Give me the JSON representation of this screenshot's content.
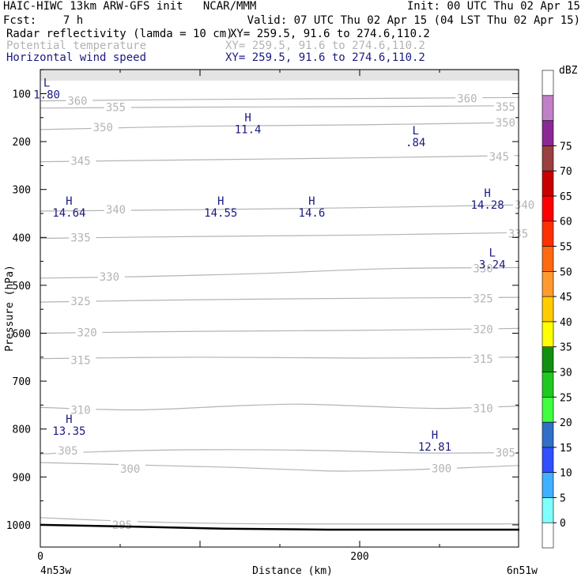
{
  "header": {
    "line1_left": "HAIC-HIWC 13km ARW-GFS init   NCAR/MMM",
    "line1_right": "Init: 00 UTC Thu 02 Apr 15",
    "line2_left": "Fcst:    7 h",
    "line2_right": "Valid: 07 UTC Thu 02 Apr 15 (04 LST Thu 02 Apr 15)",
    "fields": [
      {
        "name": "Radar reflectivity (lamda = 10 cm)",
        "xy": "XY= 259.5, 91.6 to 274.6,110.2",
        "color": "#000000"
      },
      {
        "name": "Potential temperature",
        "xy": "XY= 259.5, 91.6 to 274.6,110.2",
        "color": "#b3b3b3"
      },
      {
        "name": "Horizontal wind speed",
        "xy": "XY= 259.5, 91.6 to 274.6,110.2",
        "color": "#1a1a80"
      }
    ]
  },
  "chart_data": {
    "type": "cross-section contour",
    "xlabel": "Distance (km)",
    "ylabel": "Pressure (hPa)",
    "xlim": [
      0,
      300
    ],
    "ylim": [
      1050,
      50
    ],
    "xticks": [
      0,
      200
    ],
    "yticks": [
      100,
      200,
      300,
      400,
      500,
      600,
      700,
      800,
      900,
      1000
    ],
    "x_left_label": "4n53w",
    "x_right_label": "6n51w",
    "theta_contours": [
      {
        "value": 295,
        "points": [
          [
            0,
            985
          ],
          [
            60,
            993
          ],
          [
            140,
            998
          ],
          [
            300,
            998
          ]
        ],
        "labels": [
          [
            45,
            1000
          ]
        ]
      },
      {
        "value": 300,
        "points": [
          [
            0,
            870
          ],
          [
            60,
            875
          ],
          [
            120,
            880
          ],
          [
            160,
            885
          ],
          [
            190,
            888
          ],
          [
            240,
            884
          ],
          [
            300,
            876
          ]
        ],
        "labels": [
          [
            50,
            883
          ],
          [
            245,
            882
          ]
        ]
      },
      {
        "value": 305,
        "points": [
          [
            0,
            852
          ],
          [
            60,
            845
          ],
          [
            120,
            843
          ],
          [
            180,
            845
          ],
          [
            240,
            850
          ],
          [
            300,
            849
          ]
        ],
        "labels": [
          [
            11,
            845
          ],
          [
            285,
            849
          ]
        ]
      },
      {
        "value": 310,
        "points": [
          [
            0,
            755
          ],
          [
            60,
            760
          ],
          [
            120,
            752
          ],
          [
            160,
            748
          ],
          [
            200,
            752
          ],
          [
            250,
            757
          ],
          [
            300,
            752
          ]
        ],
        "labels": [
          [
            19,
            760
          ],
          [
            271,
            757
          ]
        ]
      },
      {
        "value": 315,
        "points": [
          [
            0,
            653
          ],
          [
            100,
            650
          ],
          [
            200,
            652
          ],
          [
            300,
            650
          ]
        ],
        "labels": [
          [
            19,
            656
          ],
          [
            271,
            654
          ]
        ]
      },
      {
        "value": 320,
        "points": [
          [
            0,
            600
          ],
          [
            100,
            596
          ],
          [
            200,
            594
          ],
          [
            300,
            590
          ]
        ],
        "labels": [
          [
            23,
            598
          ],
          [
            271,
            592
          ]
        ]
      },
      {
        "value": 325,
        "points": [
          [
            0,
            535
          ],
          [
            100,
            530
          ],
          [
            200,
            527
          ],
          [
            300,
            525
          ]
        ],
        "labels": [
          [
            19,
            533
          ],
          [
            271,
            527
          ]
        ]
      },
      {
        "value": 330,
        "points": [
          [
            0,
            485
          ],
          [
            60,
            482
          ],
          [
            140,
            475
          ],
          [
            220,
            465
          ],
          [
            300,
            463
          ]
        ],
        "labels": [
          [
            37,
            482
          ],
          [
            271,
            465
          ]
        ]
      },
      {
        "value": 335,
        "points": [
          [
            0,
            402
          ],
          [
            100,
            398
          ],
          [
            200,
            395
          ],
          [
            300,
            390
          ]
        ],
        "labels": [
          [
            19,
            400
          ],
          [
            293,
            392
          ]
        ]
      },
      {
        "value": 340,
        "points": [
          [
            0,
            345
          ],
          [
            100,
            342
          ],
          [
            200,
            338
          ],
          [
            300,
            332
          ]
        ],
        "labels": [
          [
            41,
            342
          ],
          [
            297,
            332
          ]
        ]
      },
      {
        "value": 345,
        "points": [
          [
            0,
            242
          ],
          [
            100,
            238
          ],
          [
            200,
            234
          ],
          [
            300,
            229
          ]
        ],
        "labels": [
          [
            19,
            240
          ],
          [
            281,
            231
          ]
        ]
      },
      {
        "value": 350,
        "points": [
          [
            0,
            175
          ],
          [
            100,
            168
          ],
          [
            200,
            165
          ],
          [
            300,
            160
          ]
        ],
        "labels": [
          [
            33,
            170
          ],
          [
            285,
            160
          ]
        ]
      },
      {
        "value": 355,
        "points": [
          [
            0,
            130
          ],
          [
            100,
            128
          ],
          [
            200,
            127
          ],
          [
            300,
            125
          ]
        ],
        "labels": [
          [
            41,
            128
          ],
          [
            285,
            127
          ]
        ]
      },
      {
        "value": 360,
        "points": [
          [
            0,
            115
          ],
          [
            100,
            112
          ],
          [
            200,
            110
          ],
          [
            300,
            108
          ]
        ],
        "labels": [
          [
            17,
            115
          ],
          [
            261,
            110
          ]
        ]
      }
    ],
    "wind_extrema": [
      {
        "type": "L",
        "value": "1.80",
        "x": 4,
        "y": 85
      },
      {
        "type": "H",
        "value": "11.4",
        "x": 130,
        "y": 158
      },
      {
        "type": "L",
        "value": ".84",
        "x": 235,
        "y": 185
      },
      {
        "type": "H",
        "value": "14.64",
        "x": 18,
        "y": 332
      },
      {
        "type": "H",
        "value": "14.55",
        "x": 113,
        "y": 332
      },
      {
        "type": "H",
        "value": "14.6",
        "x": 170,
        "y": 332
      },
      {
        "type": "H",
        "value": "14.28",
        "x": 280,
        "y": 315
      },
      {
        "type": "L",
        "value": "3.24",
        "x": 283,
        "y": 440
      },
      {
        "type": "H",
        "value": "13.35",
        "x": 18,
        "y": 787
      },
      {
        "type": "H",
        "value": "12.81",
        "x": 247,
        "y": 820
      }
    ],
    "terrain": [
      [
        0,
        1000
      ],
      [
        60,
        1004
      ],
      [
        115,
        1008
      ],
      [
        180,
        1010
      ],
      [
        300,
        1010
      ]
    ],
    "colorbar": {
      "label": "dBZ",
      "ticks": [
        0,
        5,
        10,
        15,
        20,
        25,
        30,
        35,
        40,
        45,
        50,
        55,
        60,
        65,
        70,
        75
      ],
      "colors": [
        "#ffffff",
        "#80ffff",
        "#40b0ff",
        "#3050ff",
        "#3070c8",
        "#40ff40",
        "#20c820",
        "#109010",
        "#ffff00",
        "#ffcc00",
        "#ff9a30",
        "#ff6a10",
        "#ff3000",
        "#ff0000",
        "#c80000",
        "#9a4040",
        "#8c2894",
        "#c080c8",
        "#ffffff"
      ]
    }
  }
}
